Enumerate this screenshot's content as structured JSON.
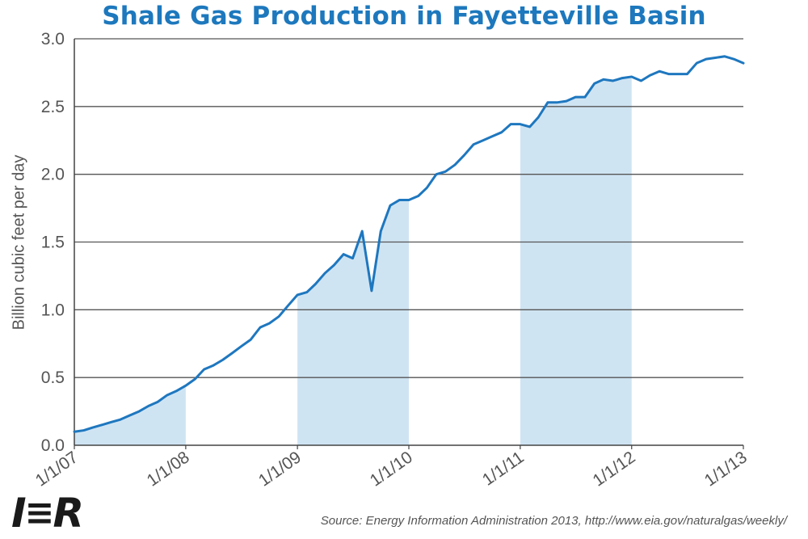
{
  "header": {
    "title": "Shale Gas Production in Fayetteville Basin"
  },
  "footer": {
    "logo_text": "IER",
    "source": "Source: Energy Information Administration 2013, http://www.eia.gov/naturalgas/weekly/"
  },
  "colors": {
    "title": "#1d78bd",
    "line": "#1e77bf",
    "shade": "#cfe4f3",
    "grid": "#555555"
  },
  "chart_data": {
    "type": "line",
    "title": "Shale Gas Production in Fayetteville Basin",
    "ylabel": "Billion cubic feet per day",
    "xlabel": "",
    "ylim": [
      0,
      3.0
    ],
    "xlim": [
      "2007-01-01",
      "2013-01-01"
    ],
    "yticks": [
      "0.0",
      "0.5",
      "1.0",
      "1.5",
      "2.0",
      "2.5",
      "3.0"
    ],
    "xticks": [
      "1/1/07",
      "1/1/08",
      "1/1/09",
      "1/1/10",
      "1/1/11",
      "1/1/12",
      "1/1/13"
    ],
    "grid": "horizontal",
    "series": [
      {
        "x": [
          "2007-01",
          "2007-02",
          "2007-03",
          "2007-04",
          "2007-05",
          "2007-06",
          "2007-07",
          "2007-08",
          "2007-09",
          "2007-10",
          "2007-11",
          "2007-12",
          "2008-01",
          "2008-02",
          "2008-03",
          "2008-04",
          "2008-05",
          "2008-06",
          "2008-07",
          "2008-08",
          "2008-09",
          "2008-10",
          "2008-11",
          "2008-12",
          "2009-01",
          "2009-02",
          "2009-03",
          "2009-04",
          "2009-05",
          "2009-06",
          "2009-07",
          "2009-08",
          "2009-09",
          "2009-10",
          "2009-11",
          "2009-12",
          "2010-01",
          "2010-02",
          "2010-03",
          "2010-04",
          "2010-05",
          "2010-06",
          "2010-07",
          "2010-08",
          "2010-09",
          "2010-10",
          "2010-11",
          "2010-12",
          "2011-01",
          "2011-02",
          "2011-03",
          "2011-04",
          "2011-05",
          "2011-06",
          "2011-07",
          "2011-08",
          "2011-09",
          "2011-10",
          "2011-11",
          "2011-12",
          "2012-01",
          "2012-02",
          "2012-03",
          "2012-04",
          "2012-05",
          "2012-06",
          "2012-07",
          "2012-08",
          "2012-09",
          "2012-10",
          "2012-11",
          "2012-12",
          "2013-01"
        ],
        "values": [
          0.1,
          0.11,
          0.13,
          0.15,
          0.17,
          0.19,
          0.22,
          0.25,
          0.29,
          0.32,
          0.37,
          0.4,
          0.44,
          0.49,
          0.56,
          0.59,
          0.63,
          0.68,
          0.73,
          0.78,
          0.87,
          0.9,
          0.95,
          1.03,
          1.11,
          1.13,
          1.19,
          1.27,
          1.33,
          1.41,
          1.38,
          1.58,
          1.14,
          1.58,
          1.77,
          1.81,
          1.81,
          1.84,
          1.9,
          2.0,
          2.02,
          2.07,
          2.14,
          2.22,
          2.25,
          2.28,
          2.31,
          2.37,
          2.37,
          2.35,
          2.42,
          2.53,
          2.53,
          2.54,
          2.57,
          2.57,
          2.67,
          2.7,
          2.69,
          2.71,
          2.72,
          2.69,
          2.73,
          2.76,
          2.74,
          2.74,
          2.74,
          2.82,
          2.85,
          2.86,
          2.87,
          2.85,
          2.82
        ]
      }
    ],
    "shaded_periods": [
      {
        "start": "2007-01-01",
        "end": "2008-01-01"
      },
      {
        "start": "2009-01-01",
        "end": "2010-01-01"
      },
      {
        "start": "2011-01-01",
        "end": "2012-01-01"
      }
    ]
  }
}
